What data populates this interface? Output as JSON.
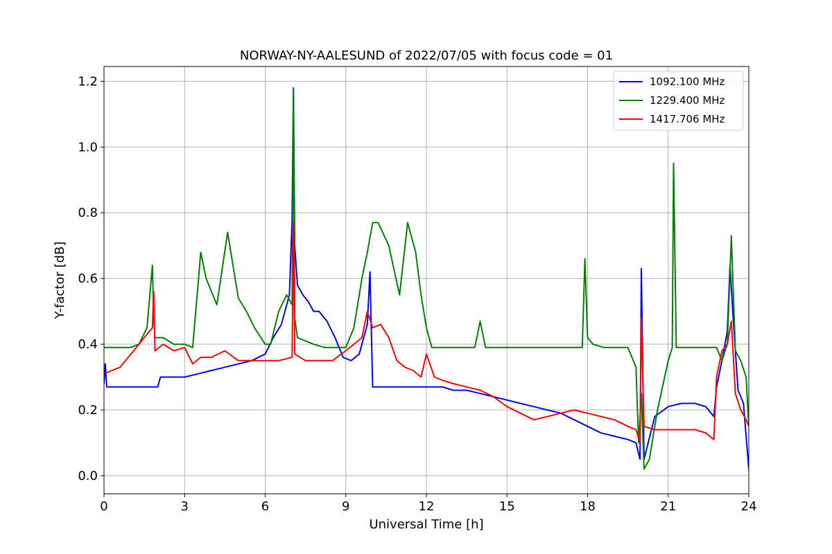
{
  "chart_data": {
    "type": "line",
    "title": "NORWAY-NY-AALESUND of 2022/07/05 with focus code = 01",
    "xlabel": "Universal Time [h]",
    "ylabel": "Y-factor [dB]",
    "xlim": [
      0,
      24
    ],
    "ylim": [
      -0.055,
      1.245
    ],
    "x_ticks": [
      0,
      3,
      6,
      9,
      12,
      15,
      18,
      21,
      24
    ],
    "x_tick_labels": [
      "0",
      "3",
      "6",
      "9",
      "12",
      "15",
      "18",
      "21",
      "24"
    ],
    "y_ticks": [
      0.0,
      0.2,
      0.4,
      0.6,
      0.8,
      1.0,
      1.2
    ],
    "y_tick_labels": [
      "0.0",
      "0.2",
      "0.4",
      "0.6",
      "0.8",
      "1.0",
      "1.2"
    ],
    "grid": true,
    "legend_position": "top-right",
    "series": [
      {
        "name": "1092.100 MHz",
        "color": "#0000ff",
        "x": [
          0,
          0.05,
          0.1,
          0.3,
          0.5,
          0.8,
          1.0,
          1.3,
          1.6,
          1.9,
          2.0,
          2.1,
          2.5,
          3.0,
          3.5,
          4.0,
          4.5,
          5.0,
          5.5,
          6.0,
          6.3,
          6.6,
          6.9,
          7.0,
          7.05,
          7.1,
          7.2,
          7.4,
          7.6,
          7.8,
          8.0,
          8.3,
          8.6,
          8.9,
          9.2,
          9.5,
          9.8,
          9.9,
          10.0,
          10.05,
          10.5,
          11.0,
          11.5,
          12.0,
          12.3,
          12.6,
          13.0,
          13.5,
          14.0,
          14.5,
          15.0,
          15.5,
          16.0,
          16.5,
          17.0,
          17.5,
          18.0,
          18.5,
          19.0,
          19.5,
          19.8,
          19.95,
          20.0,
          20.1,
          20.5,
          21.0,
          21.5,
          22.0,
          22.4,
          22.7,
          22.8,
          23.0,
          23.2,
          23.3,
          23.4,
          23.6,
          23.8,
          23.9,
          24.0
        ],
        "values": [
          0.28,
          0.34,
          0.27,
          0.27,
          0.27,
          0.27,
          0.27,
          0.27,
          0.27,
          0.27,
          0.27,
          0.3,
          0.3,
          0.3,
          0.31,
          0.32,
          0.33,
          0.34,
          0.35,
          0.37,
          0.42,
          0.46,
          0.55,
          0.78,
          1.18,
          0.7,
          0.58,
          0.55,
          0.53,
          0.5,
          0.5,
          0.47,
          0.42,
          0.36,
          0.35,
          0.37,
          0.46,
          0.62,
          0.27,
          0.27,
          0.27,
          0.27,
          0.27,
          0.27,
          0.27,
          0.27,
          0.26,
          0.26,
          0.25,
          0.24,
          0.23,
          0.22,
          0.21,
          0.2,
          0.19,
          0.17,
          0.15,
          0.13,
          0.12,
          0.11,
          0.1,
          0.05,
          0.63,
          0.05,
          0.18,
          0.21,
          0.22,
          0.22,
          0.21,
          0.18,
          0.27,
          0.35,
          0.44,
          0.64,
          0.5,
          0.26,
          0.22,
          0.12,
          0.02
        ]
      },
      {
        "name": "1229.400 MHz",
        "color": "#008000",
        "x": [
          0,
          0.05,
          0.2,
          0.5,
          1.0,
          1.3,
          1.6,
          1.8,
          1.85,
          1.9,
          2.2,
          2.6,
          3.0,
          3.3,
          3.5,
          3.6,
          3.8,
          4.2,
          4.6,
          5.0,
          5.3,
          5.6,
          6.0,
          6.2,
          6.5,
          6.8,
          7.0,
          7.05,
          7.1,
          7.2,
          7.5,
          7.8,
          8.2,
          8.6,
          9.0,
          9.3,
          9.6,
          9.8,
          10.0,
          10.2,
          10.6,
          11.0,
          11.3,
          11.6,
          11.8,
          12.0,
          12.2,
          12.4,
          12.6,
          13.0,
          13.5,
          13.8,
          14.0,
          14.2,
          14.5,
          15.0,
          16.0,
          17.0,
          17.8,
          17.9,
          18.0,
          18.2,
          18.6,
          19.0,
          19.5,
          19.8,
          19.9,
          20.0,
          20.1,
          20.3,
          20.6,
          21.0,
          21.15,
          21.2,
          21.3,
          21.5,
          22.0,
          22.5,
          22.8,
          23.0,
          23.2,
          23.35,
          23.5,
          23.7,
          23.9,
          24.0
        ],
        "values": [
          0.39,
          0.39,
          0.39,
          0.39,
          0.39,
          0.4,
          0.45,
          0.64,
          0.48,
          0.42,
          0.42,
          0.4,
          0.4,
          0.39,
          0.58,
          0.68,
          0.6,
          0.52,
          0.74,
          0.54,
          0.5,
          0.45,
          0.4,
          0.4,
          0.5,
          0.55,
          0.52,
          1.18,
          0.48,
          0.42,
          0.41,
          0.4,
          0.39,
          0.39,
          0.39,
          0.45,
          0.6,
          0.68,
          0.77,
          0.77,
          0.7,
          0.55,
          0.77,
          0.68,
          0.55,
          0.45,
          0.39,
          0.39,
          0.39,
          0.39,
          0.39,
          0.39,
          0.47,
          0.39,
          0.39,
          0.39,
          0.39,
          0.39,
          0.39,
          0.66,
          0.42,
          0.4,
          0.39,
          0.39,
          0.39,
          0.33,
          0.1,
          0.25,
          0.02,
          0.05,
          0.2,
          0.35,
          0.39,
          0.95,
          0.39,
          0.39,
          0.39,
          0.39,
          0.39,
          0.35,
          0.4,
          0.73,
          0.38,
          0.35,
          0.3,
          0.15
        ]
      },
      {
        "name": "1417.706 MHz",
        "color": "#ff0000",
        "x": [
          0,
          0.3,
          0.6,
          1.0,
          1.3,
          1.6,
          1.8,
          1.85,
          1.9,
          2.2,
          2.6,
          3.0,
          3.3,
          3.6,
          4.0,
          4.5,
          5.0,
          5.5,
          6.0,
          6.5,
          7.0,
          7.05,
          7.1,
          7.5,
          8.0,
          8.5,
          9.0,
          9.3,
          9.6,
          9.8,
          10.0,
          10.3,
          10.6,
          10.9,
          11.2,
          11.5,
          11.8,
          12.0,
          12.3,
          12.6,
          13.0,
          13.5,
          14.0,
          14.5,
          15.0,
          15.5,
          16.0,
          16.5,
          17.0,
          17.5,
          18.0,
          18.5,
          19.0,
          19.5,
          19.8,
          19.95,
          20.0,
          20.1,
          20.5,
          21.0,
          21.5,
          22.0,
          22.4,
          22.7,
          22.8,
          23.0,
          23.2,
          23.35,
          23.5,
          23.7,
          23.9,
          24.0
        ],
        "values": [
          0.31,
          0.32,
          0.33,
          0.37,
          0.4,
          0.43,
          0.45,
          0.56,
          0.38,
          0.4,
          0.38,
          0.39,
          0.34,
          0.36,
          0.36,
          0.38,
          0.35,
          0.35,
          0.35,
          0.35,
          0.36,
          0.77,
          0.37,
          0.35,
          0.35,
          0.35,
          0.38,
          0.4,
          0.42,
          0.5,
          0.45,
          0.46,
          0.42,
          0.35,
          0.33,
          0.32,
          0.3,
          0.37,
          0.3,
          0.29,
          0.28,
          0.27,
          0.26,
          0.24,
          0.21,
          0.19,
          0.17,
          0.18,
          0.19,
          0.2,
          0.19,
          0.18,
          0.17,
          0.15,
          0.14,
          0.1,
          0.48,
          0.15,
          0.14,
          0.14,
          0.14,
          0.14,
          0.13,
          0.11,
          0.3,
          0.38,
          0.4,
          0.47,
          0.25,
          0.2,
          0.17,
          0.15
        ]
      }
    ]
  }
}
